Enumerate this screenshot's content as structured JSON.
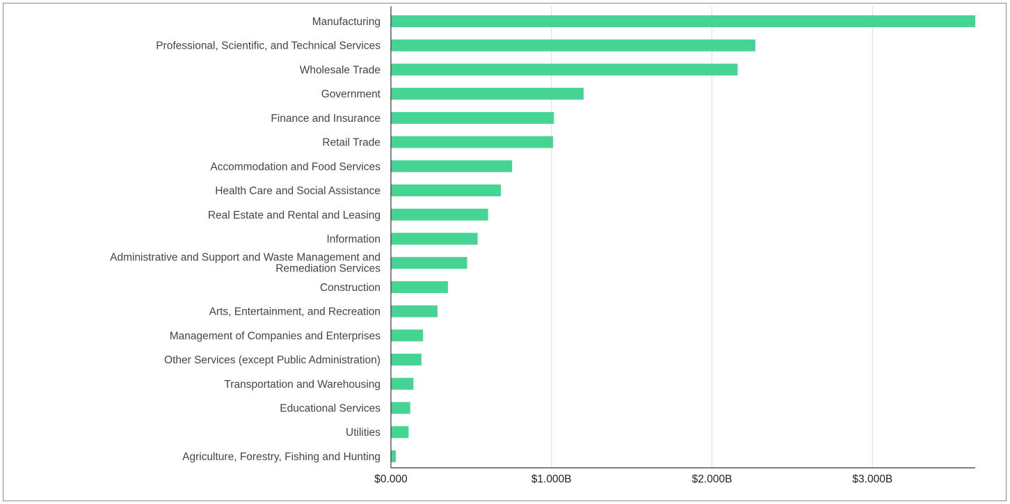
{
  "chart_data": {
    "type": "bar",
    "orientation": "horizontal",
    "categories": [
      "Manufacturing",
      "Professional, Scientific, and Technical Services",
      "Wholesale Trade",
      "Government",
      "Finance and Insurance",
      "Retail Trade",
      "Accommodation and Food Services",
      "Health Care and Social Assistance",
      "Real Estate and Rental and Leasing",
      "Information",
      "Administrative and Support and Waste Management and Remediation Services",
      "Construction",
      "Arts, Entertainment, and Recreation",
      "Management of Companies and Enterprises",
      "Other Services (except Public Administration)",
      "Transportation and Warehousing",
      "Educational Services",
      "Utilities",
      "Agriculture, Forestry, Fishing and Hunting"
    ],
    "values": [
      3.64,
      2.27,
      2.16,
      1.2,
      1.015,
      1.01,
      0.755,
      0.685,
      0.605,
      0.54,
      0.475,
      0.355,
      0.29,
      0.2,
      0.19,
      0.14,
      0.12,
      0.11,
      0.03
    ],
    "unit": "billions USD",
    "xlim": [
      0,
      3.64
    ],
    "xticks": [
      0,
      1,
      2,
      3
    ],
    "xtick_labels": [
      "$0.000",
      "$1.000B",
      "$2.000B",
      "$3.000B"
    ],
    "title": "",
    "xlabel": "",
    "ylabel": "",
    "grid": "vertical",
    "legend": "none",
    "bar_color": "#45d493",
    "grid_color": "#dcdcdc",
    "axis_color": "#333333",
    "label_color": "#444444"
  }
}
